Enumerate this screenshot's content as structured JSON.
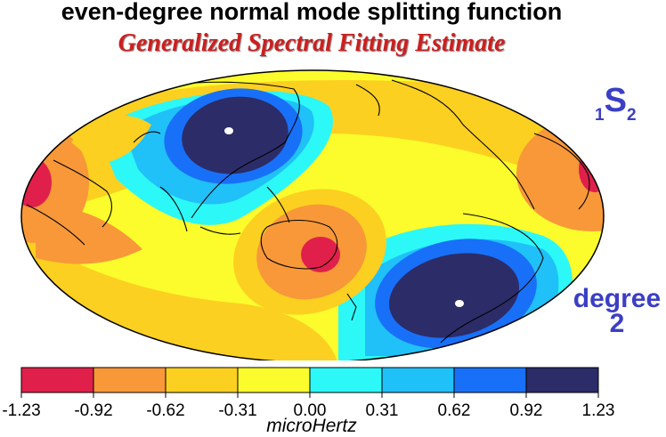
{
  "header": {
    "title": "even-degree normal mode splitting function",
    "subtitle": "Generalized Spectral Fitting Estimate"
  },
  "mode": {
    "overtone": "1",
    "type": "S",
    "degree_index": "2"
  },
  "degree_label": {
    "line1": "degree",
    "line2": "2"
  },
  "map": {
    "projection": "Hammer-Aitoff (global)",
    "center_longitude": 180,
    "show_coastlines": true
  },
  "colorbar": {
    "ticks": [
      "-1.23",
      "-0.92",
      "-0.62",
      "-0.31",
      "0.00",
      "0.31",
      "0.62",
      "0.92",
      "1.23"
    ],
    "colors": [
      "#e0204a",
      "#f89838",
      "#fcd020",
      "#fcfc2c",
      "#2cf8f8",
      "#20c0f8",
      "#1870f8",
      "#2c2c68"
    ],
    "unit": "microHertz"
  }
}
